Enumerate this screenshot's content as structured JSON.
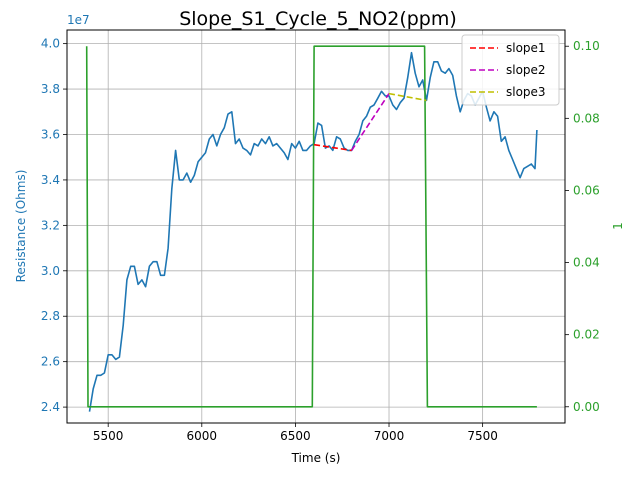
{
  "chart_data": {
    "type": "line",
    "title": "Slope_S1_Cycle_5_NO2(ppm)",
    "xlabel": "Time (s)",
    "ylabel_left": "Resistance (Ohms)",
    "ylabel_right": "1",
    "y_left_multiplier_label": "1e7",
    "xlim": [
      5280,
      7940
    ],
    "ylim_left": [
      23.3,
      40.6
    ],
    "ylim_right": [
      -0.0045,
      0.1045
    ],
    "x_ticks": [
      5500,
      6000,
      6500,
      7000,
      7500
    ],
    "x_tick_labels": [
      "5500",
      "6000",
      "6500",
      "7000",
      "7500"
    ],
    "y_left_ticks": [
      24,
      26,
      28,
      30,
      32,
      34,
      36,
      38,
      40
    ],
    "y_left_tick_labels": [
      "2.4",
      "2.6",
      "2.8",
      "3.0",
      "3.2",
      "3.4",
      "3.6",
      "3.8",
      "4.0"
    ],
    "y_right_ticks": [
      0.0,
      0.02,
      0.04,
      0.06,
      0.08,
      0.1
    ],
    "y_right_tick_labels": [
      "0.00",
      "0.02",
      "0.04",
      "0.06",
      "0.08",
      "0.10"
    ],
    "grid": true,
    "legend_position": "top-right",
    "colors": {
      "resistance": "#1f77b4",
      "concentration": "#2ca02c",
      "slope1": "#ff0000",
      "slope2": "#bf00bf",
      "slope3": "#bfbf00",
      "left_axis_text": "#1f77b4",
      "right_axis_text": "#2ca02c"
    },
    "series": [
      {
        "key": "resistance",
        "axis": "left",
        "style": "solid",
        "x": [
          5400,
          5420,
          5440,
          5460,
          5480,
          5500,
          5520,
          5540,
          5560,
          5580,
          5600,
          5620,
          5640,
          5660,
          5680,
          5700,
          5720,
          5740,
          5760,
          5780,
          5800,
          5820,
          5840,
          5860,
          5880,
          5900,
          5920,
          5940,
          5960,
          5980,
          6000,
          6020,
          6040,
          6060,
          6080,
          6100,
          6120,
          6140,
          6160,
          6180,
          6200,
          6220,
          6240,
          6260,
          6280,
          6300,
          6320,
          6340,
          6360,
          6380,
          6400,
          6420,
          6440,
          6460,
          6480,
          6500,
          6520,
          6540,
          6560,
          6580,
          6600,
          6620,
          6640,
          6660,
          6680,
          6700,
          6720,
          6740,
          6760,
          6780,
          6800,
          6820,
          6840,
          6860,
          6880,
          6900,
          6920,
          6940,
          6960,
          6980,
          7000,
          7020,
          7040,
          7060,
          7080,
          7100,
          7120,
          7140,
          7160,
          7180,
          7200,
          7220,
          7240,
          7260,
          7280,
          7300,
          7320,
          7340,
          7360,
          7380,
          7400,
          7420,
          7440,
          7460,
          7480,
          7500,
          7520,
          7540,
          7560,
          7580,
          7600,
          7620,
          7640,
          7660,
          7680,
          7700,
          7720,
          7740,
          7760,
          7780,
          7790
        ],
        "y": [
          23.8,
          24.8,
          25.4,
          25.4,
          25.5,
          26.3,
          26.3,
          26.1,
          26.2,
          27.6,
          29.6,
          30.2,
          30.2,
          29.4,
          29.6,
          29.3,
          30.2,
          30.4,
          30.4,
          29.8,
          29.8,
          31.0,
          33.6,
          35.3,
          34.0,
          34.0,
          34.3,
          33.9,
          34.2,
          34.8,
          35.0,
          35.2,
          35.8,
          36.0,
          35.5,
          36.0,
          36.3,
          36.9,
          37.0,
          35.6,
          35.8,
          35.4,
          35.3,
          35.1,
          35.6,
          35.5,
          35.8,
          35.6,
          35.9,
          35.5,
          35.6,
          35.4,
          35.2,
          34.9,
          35.6,
          35.4,
          35.7,
          35.3,
          35.3,
          35.5,
          35.6,
          36.5,
          36.4,
          35.4,
          35.5,
          35.3,
          35.9,
          35.8,
          35.4,
          35.3,
          35.3,
          35.7,
          36.0,
          36.6,
          36.8,
          37.2,
          37.3,
          37.6,
          37.9,
          37.7,
          37.7,
          37.3,
          37.1,
          37.4,
          37.6,
          38.5,
          39.6,
          38.7,
          38.1,
          38.4,
          37.5,
          38.5,
          39.2,
          39.2,
          38.8,
          38.7,
          38.9,
          38.6,
          37.7,
          37.0,
          37.5,
          37.8,
          37.7,
          37.3,
          37.6,
          37.9,
          37.2,
          36.6,
          37.0,
          36.8,
          35.7,
          35.9,
          35.3,
          34.9,
          34.5,
          34.1,
          34.5,
          34.6,
          34.7,
          34.5,
          36.2
        ]
      },
      {
        "key": "concentration",
        "axis": "right",
        "style": "solid",
        "x": [
          5385,
          5392,
          5395,
          6590,
          6600,
          7190,
          7205,
          7790
        ],
        "y": [
          0.1,
          0.0,
          0.0,
          0.0,
          0.1,
          0.1,
          0.0,
          0.0
        ]
      },
      {
        "key": "slope1",
        "name": "slope1",
        "axis": "left",
        "style": "dashed",
        "x": [
          6600,
          6800
        ],
        "y": [
          35.55,
          35.3
        ]
      },
      {
        "key": "slope2",
        "name": "slope2",
        "axis": "left",
        "style": "dashed",
        "x": [
          6800,
          7000
        ],
        "y": [
          35.3,
          37.8
        ]
      },
      {
        "key": "slope3",
        "name": "slope3",
        "axis": "left",
        "style": "dashed",
        "x": [
          7000,
          7200
        ],
        "y": [
          37.8,
          37.5
        ]
      }
    ]
  }
}
